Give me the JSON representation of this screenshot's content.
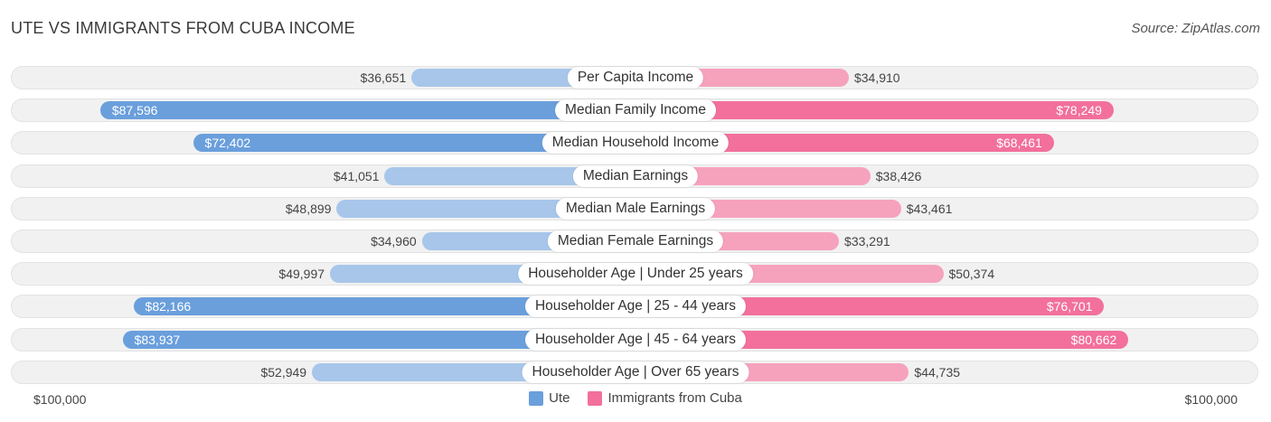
{
  "header": {
    "title": "UTE VS IMMIGRANTS FROM CUBA INCOME",
    "source": "Source: ZipAtlas.com"
  },
  "legend": {
    "ute_label": "Ute",
    "cuba_label": "Immigrants from Cuba"
  },
  "axis": {
    "left_label": "$100,000",
    "right_label": "$100,000"
  },
  "colors": {
    "ute_light": "#a7c6ea",
    "ute_strong": "#6a9fdc",
    "cuba_light": "#f6a2bd",
    "cuba_strong": "#f2709b"
  },
  "chart_data": {
    "type": "bar",
    "orientation": "diverging-horizontal",
    "title": "UTE VS IMMIGRANTS FROM CUBA INCOME",
    "xlim": [
      -100000,
      100000
    ],
    "categories": [
      "Per Capita Income",
      "Median Family Income",
      "Median Household Income",
      "Median Earnings",
      "Median Male Earnings",
      "Median Female Earnings",
      "Householder Age | Under 25 years",
      "Householder Age | 25 - 44 years",
      "Householder Age | 45 - 64 years",
      "Householder Age | Over 65 years"
    ],
    "series": [
      {
        "name": "Ute",
        "values": [
          36651,
          87596,
          72402,
          41051,
          48899,
          34960,
          49997,
          82166,
          83937,
          52949
        ],
        "labels": [
          "$36,651",
          "$87,596",
          "$72,402",
          "$41,051",
          "$48,899",
          "$34,960",
          "$49,997",
          "$82,166",
          "$83,937",
          "$52,949"
        ]
      },
      {
        "name": "Immigrants from Cuba",
        "values": [
          34910,
          78249,
          68461,
          38426,
          43461,
          33291,
          50374,
          76701,
          80662,
          44735
        ],
        "labels": [
          "$34,910",
          "$78,249",
          "$68,461",
          "$38,426",
          "$43,461",
          "$33,291",
          "$50,374",
          "$76,701",
          "$80,662",
          "$44,735"
        ]
      }
    ]
  }
}
